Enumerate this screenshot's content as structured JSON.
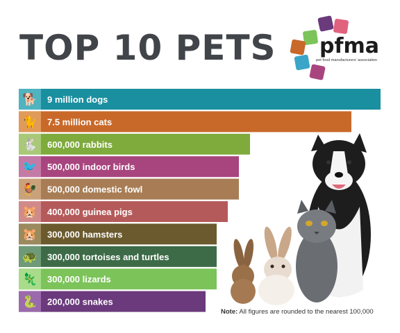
{
  "title": "TOP 10 PETS",
  "logo": {
    "name": "pfma",
    "subtitle": "pet food manufacturers' association"
  },
  "note": {
    "label": "Note:",
    "text": "All figures are rounded to the nearest 100,000"
  },
  "chart_data": {
    "type": "bar",
    "orientation": "horizontal",
    "title": "TOP 10 PETS",
    "categories": [
      "dogs",
      "cats",
      "rabbits",
      "indoor birds",
      "domestic fowl",
      "guinea pigs",
      "hamsters",
      "tortoises and turtles",
      "lizards",
      "snakes"
    ],
    "labels": [
      "9 million dogs",
      "7.5 million cats",
      "600,000 rabbits",
      "500,000 indoor birds",
      "500,000 domestic fowl",
      "400,000 guinea pigs",
      "300,000 hamsters",
      "300,000 tortoises and turtles",
      "300,000 lizards",
      "200,000 snakes"
    ],
    "values": [
      9000000,
      7500000,
      600000,
      500000,
      500000,
      400000,
      300000,
      300000,
      300000,
      200000
    ],
    "colors": [
      "#1a8fa0",
      "#c8692a",
      "#7faa3c",
      "#a8457e",
      "#a87d55",
      "#b55a5a",
      "#6b5a2e",
      "#3d6b47",
      "#7cc35a",
      "#6a3a7c"
    ],
    "icon_colors": [
      "#4fb3c0",
      "#e09a5a",
      "#a9c978",
      "#c47aa6",
      "#c9a27c",
      "#d08a8a",
      "#9a8a5e",
      "#6e9a78",
      "#a8dc8a",
      "#9a6aac"
    ],
    "icons": [
      "dog-icon",
      "cat-icon",
      "rabbit-icon",
      "bird-icon",
      "fowl-icon",
      "guinea-pig-icon",
      "hamster-icon",
      "tortoise-icon",
      "lizard-icon",
      "snake-icon"
    ],
    "icon_glyphs": [
      "🐕",
      "🐈",
      "🐇",
      "🐦",
      "🐓",
      "🐹",
      "🐹",
      "🐢",
      "🦎",
      "🐍"
    ],
    "grid": false,
    "legend": "none"
  }
}
